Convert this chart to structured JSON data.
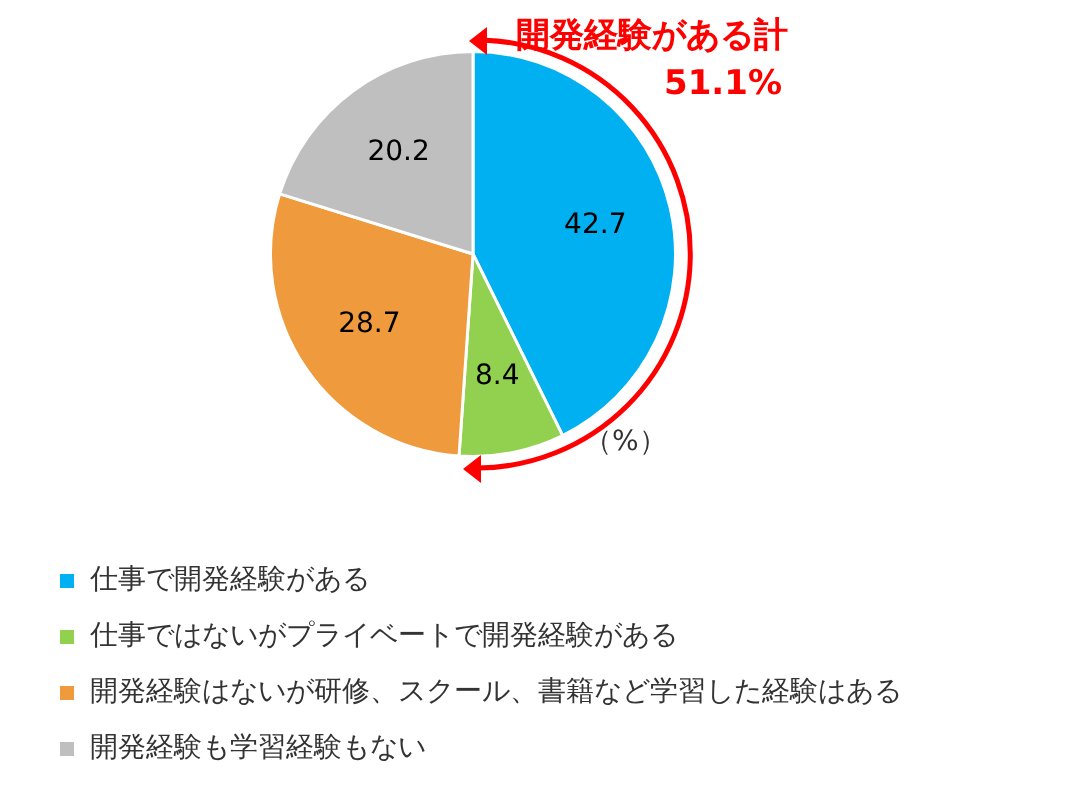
{
  "chart_data": {
    "type": "pie",
    "categories": [
      "仕事で開発経験がある",
      "仕事ではないがプライベートで開発経験がある",
      "開発経験はないが研修、スクール、書籍など学習した経験はある",
      "開発経験も学習経験もない"
    ],
    "values": [
      42.7,
      8.4,
      28.7,
      20.2
    ],
    "colors": [
      "#00b0f0",
      "#92d050",
      "#f09a3e",
      "#bfbfbf"
    ],
    "data_labels": true,
    "legend": "bottom",
    "annotations": [
      "開発経験がある計",
      "51.1%",
      "（%）"
    ]
  }
}
